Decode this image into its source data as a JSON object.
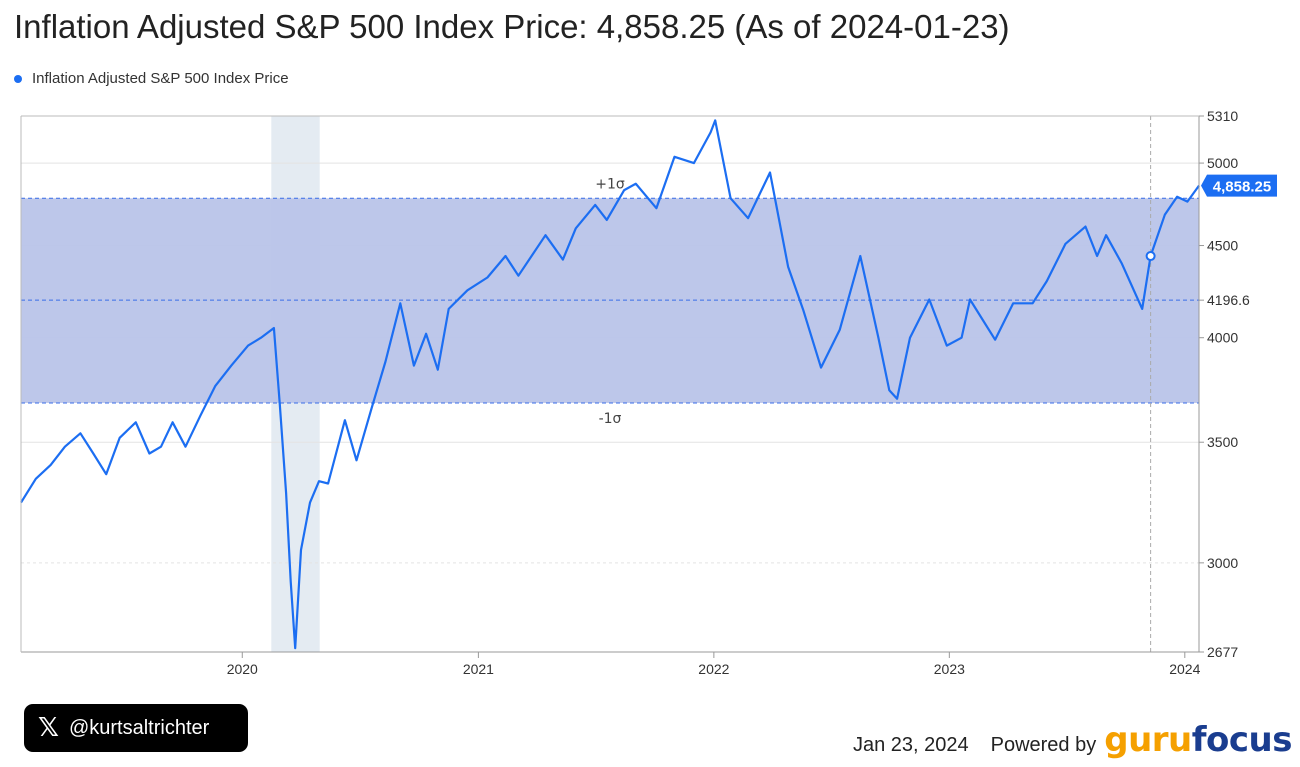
{
  "title": "Inflation Adjusted S&P 500 Index Price: 4,858.25 (As of 2024-01-23)",
  "colors": {
    "line": "#1c6ef2",
    "band": "#b9c4e9",
    "recession": "#e4ebf2",
    "grid": "#e3e3e3",
    "dashed": "#3a6ee8",
    "label_box": "#1c6ef2"
  },
  "chart_data": {
    "type": "line",
    "title": "Inflation Adjusted S&P 500 Index Price: 4,858.25 (As of 2024-01-23)",
    "legend": "Inflation Adjusted S&P 500 Index Price",
    "legend_position": "top-left",
    "y_scale": "log",
    "ylim": [
      2677,
      5310
    ],
    "xlim": [
      "2019-01-23",
      "2024-01-23"
    ],
    "y_ticks": [
      2677,
      3000,
      3500,
      4000,
      4196.6,
      4500,
      5000,
      5310
    ],
    "y_tick_labels": [
      "2677",
      "3000",
      "3500",
      "4000",
      "4196.6",
      "4500",
      "5000",
      "5310"
    ],
    "x_ticks": [
      "2020-01-01",
      "2021-01-01",
      "2022-01-01",
      "2023-01-01",
      "2024-01-01"
    ],
    "x_tick_labels": [
      "2020",
      "2021",
      "2022",
      "2023",
      "2024"
    ],
    "mean": 4196.6,
    "plus_1_sigma": 4780,
    "minus_1_sigma": 3680,
    "plus_sigma_label": "+1σ",
    "minus_sigma_label": "-1σ",
    "recession_band": [
      "2020-02-15",
      "2020-04-30"
    ],
    "marker_date": "2023-11-09",
    "current_label": "4,858.25",
    "grid": true,
    "series": [
      {
        "name": "Inflation Adjusted S&P 500 Index Price",
        "points": [
          [
            "2019-01-23",
            3240
          ],
          [
            "2019-02-15",
            3340
          ],
          [
            "2019-03-10",
            3400
          ],
          [
            "2019-04-01",
            3480
          ],
          [
            "2019-04-25",
            3540
          ],
          [
            "2019-05-15",
            3450
          ],
          [
            "2019-06-04",
            3360
          ],
          [
            "2019-06-25",
            3520
          ],
          [
            "2019-07-20",
            3590
          ],
          [
            "2019-08-10",
            3450
          ],
          [
            "2019-08-28",
            3480
          ],
          [
            "2019-09-15",
            3590
          ],
          [
            "2019-10-05",
            3480
          ],
          [
            "2019-10-28",
            3620
          ],
          [
            "2019-11-20",
            3760
          ],
          [
            "2019-12-15",
            3860
          ],
          [
            "2020-01-10",
            3960
          ],
          [
            "2020-01-30",
            4000
          ],
          [
            "2020-02-19",
            4050
          ],
          [
            "2020-02-28",
            3680
          ],
          [
            "2020-03-09",
            3280
          ],
          [
            "2020-03-16",
            2930
          ],
          [
            "2020-03-23",
            2690
          ],
          [
            "2020-04-01",
            3050
          ],
          [
            "2020-04-15",
            3240
          ],
          [
            "2020-04-29",
            3330
          ],
          [
            "2020-05-13",
            3320
          ],
          [
            "2020-06-08",
            3600
          ],
          [
            "2020-06-26",
            3420
          ],
          [
            "2020-07-20",
            3660
          ],
          [
            "2020-08-10",
            3880
          ],
          [
            "2020-09-02",
            4180
          ],
          [
            "2020-09-23",
            3860
          ],
          [
            "2020-10-12",
            4020
          ],
          [
            "2020-10-30",
            3840
          ],
          [
            "2020-11-16",
            4150
          ],
          [
            "2020-12-15",
            4250
          ],
          [
            "2021-01-15",
            4320
          ],
          [
            "2021-02-12",
            4440
          ],
          [
            "2021-03-04",
            4330
          ],
          [
            "2021-04-15",
            4560
          ],
          [
            "2021-05-12",
            4420
          ],
          [
            "2021-06-01",
            4600
          ],
          [
            "2021-07-01",
            4740
          ],
          [
            "2021-07-19",
            4650
          ],
          [
            "2021-08-15",
            4830
          ],
          [
            "2021-09-02",
            4870
          ],
          [
            "2021-10-04",
            4720
          ],
          [
            "2021-11-01",
            5040
          ],
          [
            "2021-12-01",
            5000
          ],
          [
            "2021-12-27",
            5200
          ],
          [
            "2022-01-03",
            5280
          ],
          [
            "2022-01-27",
            4780
          ],
          [
            "2022-02-23",
            4660
          ],
          [
            "2022-03-29",
            4940
          ],
          [
            "2022-04-26",
            4380
          ],
          [
            "2022-05-20",
            4140
          ],
          [
            "2022-06-16",
            3850
          ],
          [
            "2022-07-15",
            4040
          ],
          [
            "2022-08-16",
            4440
          ],
          [
            "2022-09-13",
            4000
          ],
          [
            "2022-09-30",
            3740
          ],
          [
            "2022-10-12",
            3700
          ],
          [
            "2022-11-01",
            4000
          ],
          [
            "2022-12-01",
            4200
          ],
          [
            "2022-12-28",
            3960
          ],
          [
            "2023-01-20",
            4000
          ],
          [
            "2023-02-02",
            4200
          ],
          [
            "2023-03-13",
            3990
          ],
          [
            "2023-04-10",
            4180
          ],
          [
            "2023-05-10",
            4180
          ],
          [
            "2023-06-01",
            4300
          ],
          [
            "2023-06-30",
            4510
          ],
          [
            "2023-07-31",
            4610
          ],
          [
            "2023-08-18",
            4440
          ],
          [
            "2023-09-01",
            4560
          ],
          [
            "2023-09-25",
            4400
          ],
          [
            "2023-10-27",
            4150
          ],
          [
            "2023-11-09",
            4440
          ],
          [
            "2023-12-01",
            4680
          ],
          [
            "2023-12-20",
            4790
          ],
          [
            "2024-01-05",
            4760
          ],
          [
            "2024-01-23",
            4858.25
          ]
        ]
      }
    ]
  },
  "footer": {
    "handle": "@kurtsaltrichter",
    "x_logo": "𝕏",
    "date": "Jan 23, 2024",
    "powered_by": "Powered by",
    "brand_part1": "guru",
    "brand_part2": "focus"
  }
}
